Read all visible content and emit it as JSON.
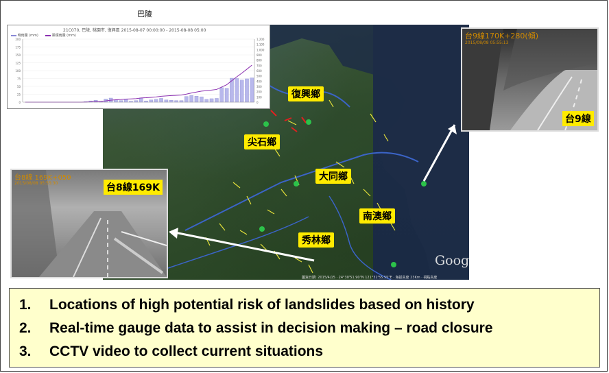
{
  "chart": {
    "title": "巴陵",
    "subtitle": "21C070, 巴陵, 桃園市, 復興區        2015-08-07 00:00:00 - 2015-08-08 05:00",
    "legend": [
      "時雨量 (mm)",
      "累積雨量 (mm)"
    ]
  },
  "chart_data": {
    "type": "bar",
    "title": "巴陵",
    "series": [
      {
        "name": "時雨量 (mm)",
        "type": "bar",
        "values": [
          0,
          0,
          0,
          0,
          0,
          0,
          0,
          0,
          0,
          0,
          0,
          0,
          2,
          4,
          6,
          3,
          10,
          13,
          7,
          5,
          9,
          3,
          5,
          13,
          4,
          7,
          9,
          12,
          7,
          6,
          5,
          5,
          18,
          21,
          19,
          17,
          9,
          11,
          12,
          46,
          44,
          76,
          75,
          70,
          74,
          77
        ]
      },
      {
        "name": "累積雨量 (mm)",
        "type": "line",
        "values": [
          0,
          0,
          0,
          0,
          0,
          0,
          0,
          0,
          0,
          0,
          0,
          0,
          2,
          6,
          12,
          15,
          25,
          38,
          45,
          50,
          59,
          62,
          67,
          80,
          84,
          91,
          100,
          112,
          119,
          125,
          130,
          135,
          153,
          174,
          193,
          210,
          219,
          230,
          242,
          288,
          332,
          408,
          483,
          553,
          627,
          704
        ]
      }
    ],
    "left_axis_ticks": [
      "200",
      "175",
      "150",
      "125",
      "100",
      "75",
      "50",
      "25",
      "0"
    ],
    "right_axis_ticks": [
      "1,200",
      "1,100",
      "1,000",
      "900",
      "800",
      "700",
      "600",
      "500",
      "400",
      "300",
      "200",
      "100",
      "0"
    ]
  },
  "map": {
    "labels": {
      "fuxing": "復興鄉",
      "jianshi": "尖石鄉",
      "datong": "大同鄉",
      "nanao": "南澳鄉",
      "xiulin": "秀林鄉"
    },
    "google": "Goog",
    "attribution": "圖資日期: 2015/4/15 · 24°30'51.90\"N 121°32'55.55\"E · 海拔高度 23Km · 視點高度"
  },
  "cameras": {
    "right": {
      "caption": "台9線",
      "overlay": "台9線170K+280(傾)",
      "timestamp": "2015/08/08 05:55:13"
    },
    "left": {
      "caption": "台8線169K",
      "overlay": "台8線 169K+050",
      "timestamp": "2015/08/08 05:55:30"
    }
  },
  "notes": [
    {
      "num": "1.",
      "text": "Locations of high potential risk of landslides based on history"
    },
    {
      "num": "2.",
      "text": "Real-time gauge data to assist in decision making – road closure"
    },
    {
      "num": "3.",
      "text": "CCTV video to collect current situations"
    }
  ]
}
